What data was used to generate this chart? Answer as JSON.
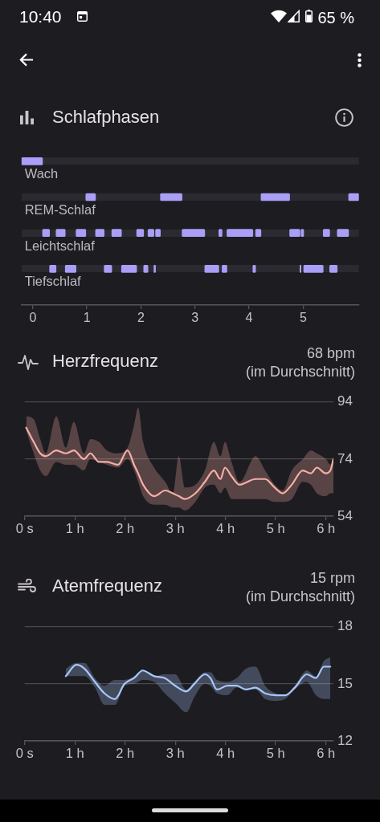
{
  "chart_data": [
    {
      "type": "bar",
      "orientation": "horizontal",
      "title": "Schlafphasen",
      "annotations": [
        "10:40",
        "65 %"
      ],
      "categories": [
        "Wach",
        "REM-Schlaf",
        "Leichtschlaf",
        "Tiefschlaf"
      ],
      "series": [
        {
          "color": "#a99ff6",
          "base": [
            -0.21,
            0.98,
            0.18,
            0.31
          ],
          "values": [
            0.39,
            0.18,
            0.13,
            0.12
          ]
        },
        {
          "color": "#a99ff6",
          "base": [
            null,
            2.36,
            0.43,
            0.6
          ],
          "values": [
            null,
            0.4,
            0.17,
            0.2
          ]
        },
        {
          "color": "#a99ff6",
          "base": [
            null,
            4.22,
            0.8,
            1.32
          ],
          "values": [
            null,
            0.53,
            0.18,
            0.14
          ]
        },
        {
          "color": "#a99ff6",
          "base": [
            null,
            5.84,
            1.16,
            1.64
          ],
          "values": [
            null,
            0.19,
            0.16,
            0.28
          ]
        },
        {
          "color": "#a99ff6",
          "base": [
            null,
            null,
            1.46,
            2.05
          ],
          "values": [
            null,
            null,
            0.18,
            0.08
          ]
        },
        {
          "color": "#a99ff6",
          "base": [
            null,
            null,
            1.92,
            2.24
          ],
          "values": [
            null,
            null,
            0.13,
            0.03
          ]
        },
        {
          "color": "#a99ff6",
          "base": [
            null,
            null,
            2.13,
            3.18
          ],
          "values": [
            null,
            null,
            0.11,
            0.26
          ]
        },
        {
          "color": "#a99ff6",
          "base": [
            null,
            null,
            2.27,
            3.5
          ],
          "values": [
            null,
            null,
            0.09,
            0.09
          ]
        },
        {
          "color": "#a99ff6",
          "base": [
            null,
            null,
            2.76,
            4.07
          ],
          "values": [
            null,
            null,
            0.42,
            0.05
          ]
        },
        {
          "color": "#a99ff6",
          "base": [
            null,
            null,
            3.44,
            4.94
          ],
          "values": [
            null,
            null,
            0.06,
            0.02
          ]
        },
        {
          "color": "#a99ff6",
          "base": [
            null,
            null,
            3.59,
            5.01
          ],
          "values": [
            null,
            null,
            0.48,
            0.36
          ]
        },
        {
          "color": "#a99ff6",
          "base": [
            null,
            null,
            4.12,
            5.49
          ],
          "values": [
            null,
            null,
            0.1,
            0.14
          ]
        },
        {
          "color": "#a99ff6",
          "base": [
            null,
            null,
            4.75,
            null
          ],
          "values": [
            null,
            null,
            0.19,
            null
          ]
        },
        {
          "color": "#a99ff6",
          "base": [
            null,
            null,
            4.96,
            null
          ],
          "values": [
            null,
            null,
            0.05,
            null
          ]
        },
        {
          "color": "#a99ff6",
          "base": [
            null,
            null,
            5.37,
            null
          ],
          "values": [
            null,
            null,
            0.12,
            null
          ]
        },
        {
          "color": "#a99ff6",
          "base": [
            null,
            null,
            5.63,
            null
          ],
          "values": [
            null,
            null,
            0.21,
            null
          ]
        }
      ],
      "xlim": [
        -0.21,
        6.03
      ],
      "xticks": [
        0,
        1,
        2,
        3,
        4,
        5
      ],
      "grid": "y"
    },
    {
      "type": "line",
      "title": "Herzfrequenz",
      "subtitle": "68 bpm",
      "annotations": [
        "(im Durchschnitt)"
      ],
      "x": [
        0.03,
        0.18,
        0.31,
        0.42,
        0.63,
        0.82,
        0.98,
        1.18,
        1.31,
        1.48,
        1.64,
        1.86,
        2.05,
        2.18,
        2.26,
        2.36,
        2.58,
        2.8,
        2.95,
        3.07,
        3.19,
        3.4,
        3.59,
        3.77,
        3.9,
        3.99,
        4.12,
        4.28,
        4.6,
        4.79,
        4.98,
        5.14,
        5.32,
        5.54,
        5.7,
        5.82,
        6.0,
        6.09,
        6.15
      ],
      "series": [
        {
          "color": "#f6aea6",
          "values": [
            85,
            80,
            76,
            75,
            77,
            76,
            77,
            74,
            76,
            73,
            73,
            72,
            77,
            72,
            69,
            65,
            61,
            63,
            62,
            61,
            60,
            62,
            66,
            70,
            67,
            71,
            68,
            65,
            67,
            67,
            64,
            62,
            65,
            70,
            69,
            71,
            69,
            70,
            74
          ],
          "upper": [
            89,
            88,
            81,
            76,
            89,
            78,
            87,
            76,
            81,
            80,
            77,
            76,
            78,
            86,
            92,
            80,
            71,
            66,
            62,
            75,
            64,
            65,
            70,
            80,
            75,
            80,
            73,
            66,
            75,
            70,
            65,
            63,
            70,
            74,
            77,
            76,
            74,
            72,
            74
          ],
          "lower": [
            84,
            76,
            70,
            68,
            73,
            72,
            72,
            70,
            74,
            73,
            72,
            71,
            74,
            70,
            66,
            61,
            58,
            58,
            57,
            57,
            56,
            59,
            64,
            65,
            62,
            64,
            60,
            60,
            60,
            60,
            59,
            59,
            60,
            66,
            65,
            62,
            61,
            62,
            62
          ]
        }
      ],
      "xlim": [
        0,
        6.15
      ],
      "xticks": [
        {
          "value": 0,
          "label": "0 s"
        },
        {
          "value": 1,
          "label": "1 h"
        },
        {
          "value": 2,
          "label": "2 h"
        },
        {
          "value": 3,
          "label": "3 h"
        },
        {
          "value": 4,
          "label": "4 h"
        },
        {
          "value": 5,
          "label": "5 h"
        },
        {
          "value": 6,
          "label": "6 h"
        }
      ],
      "ylim": [
        54,
        94
      ],
      "yticks": [
        54,
        74,
        94
      ],
      "grid": "y",
      "marker": "none"
    },
    {
      "type": "line",
      "title": "Atemfrequenz",
      "subtitle": "15 rpm",
      "annotations": [
        "(im Durchschnitt)"
      ],
      "x": [
        0.82,
        1.03,
        1.19,
        1.4,
        1.59,
        1.8,
        1.99,
        2.18,
        2.35,
        2.58,
        2.79,
        3.0,
        3.22,
        3.38,
        3.59,
        3.7,
        3.83,
        4.04,
        4.22,
        4.41,
        4.6,
        4.79,
        5.0,
        5.19,
        5.38,
        5.62,
        5.8,
        5.96,
        6.09
      ],
      "series": [
        {
          "color": "#a8c7fa",
          "values": [
            15.4,
            16.0,
            15.8,
            15.1,
            14.5,
            14.2,
            15.0,
            15.3,
            15.7,
            15.4,
            15.3,
            14.9,
            14.6,
            15.0,
            15.5,
            15.3,
            14.7,
            14.9,
            14.9,
            14.7,
            14.8,
            14.5,
            14.4,
            14.4,
            14.8,
            15.5,
            15.3,
            15.9,
            15.9
          ],
          "upper": [
            15.8,
            16.1,
            16.1,
            15.3,
            14.9,
            15.2,
            15.2,
            15.4,
            15.7,
            15.4,
            15.5,
            15.5,
            14.7,
            15.1,
            15.6,
            15.6,
            15.2,
            15.1,
            15.3,
            15.8,
            15.9,
            14.9,
            14.5,
            14.4,
            14.9,
            15.7,
            15.4,
            16.2,
            16.4
          ],
          "lower": [
            15.4,
            15.4,
            15.4,
            14.8,
            13.9,
            13.9,
            14.9,
            15.0,
            15.2,
            15.1,
            14.5,
            14.0,
            13.5,
            14.3,
            15.0,
            14.9,
            14.5,
            14.4,
            14.8,
            14.7,
            14.7,
            14.2,
            14.1,
            14.2,
            14.7,
            15.1,
            14.4,
            14.2,
            14.2
          ]
        }
      ],
      "xlim": [
        0,
        6.15
      ],
      "xticks": [
        {
          "value": 0,
          "label": "0 s"
        },
        {
          "value": 1,
          "label": "1 h"
        },
        {
          "value": 2,
          "label": "2 h"
        },
        {
          "value": 3,
          "label": "3 h"
        },
        {
          "value": 4,
          "label": "4 h"
        },
        {
          "value": 5,
          "label": "5 h"
        },
        {
          "value": 6,
          "label": "6 h"
        }
      ],
      "ylim": [
        12,
        18
      ],
      "yticks": [
        12,
        15,
        18
      ],
      "grid": "y",
      "marker": "none"
    }
  ]
}
